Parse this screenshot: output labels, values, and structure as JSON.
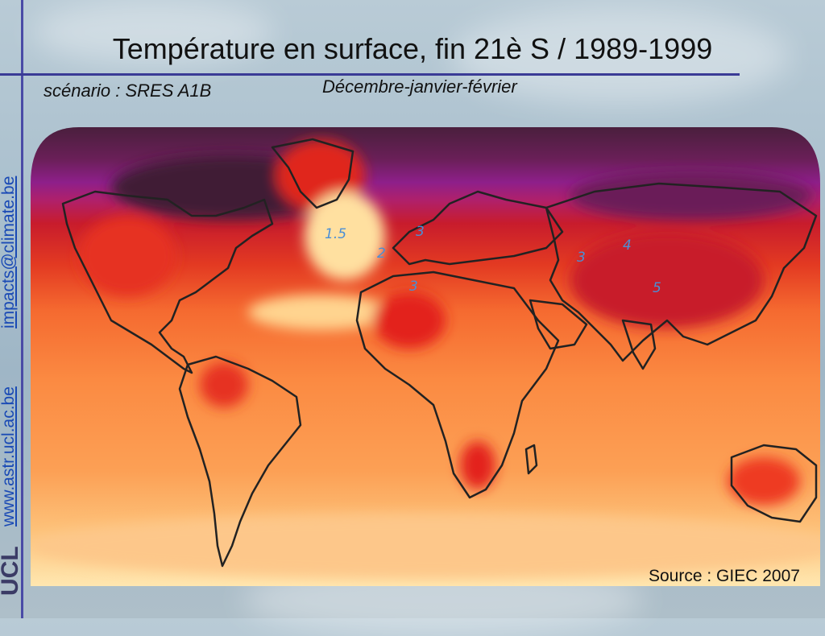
{
  "title": "Température en surface, fin 21è S / 1989-1999",
  "scenario": "scénario : SRES A1B",
  "season": "Décembre-janvier-février",
  "source": "Source : GIEC 2007",
  "sidebar": {
    "email": "impacts@climate.be",
    "website": "www.astr.ucl.ac.be",
    "logo": "UCL"
  },
  "map_labels": {
    "atlantic_north": "1.5",
    "europe_west": "3",
    "atlantic_sub": "2",
    "sahara": "3",
    "central_asia": "3",
    "siberia": "4",
    "tibet": "5"
  },
  "colors": {
    "accent_line": "#4a4ba6",
    "link": "#1a4ab5",
    "label": "#4a8fd6",
    "scale_pale": "#ffe7a8",
    "scale_orange": "#fca055",
    "scale_red": "#e3201c",
    "scale_dark": "#4a1f3d",
    "scale_purple": "#8e1f8a"
  }
}
